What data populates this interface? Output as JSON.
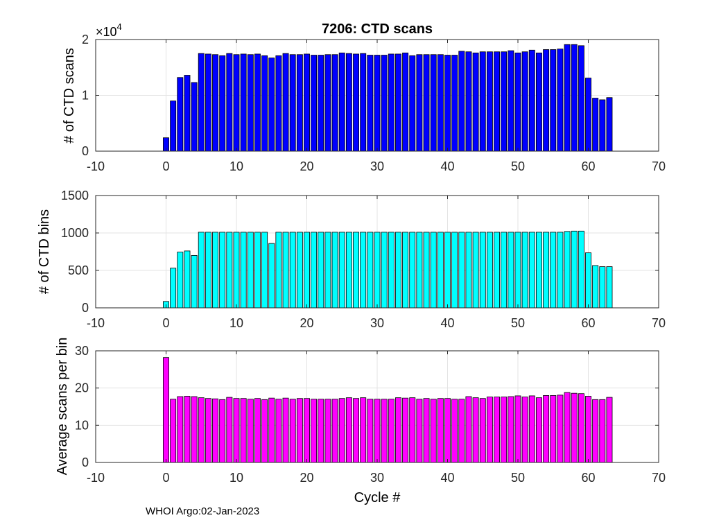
{
  "chart_data": [
    {
      "type": "bar",
      "title": "7206: CTD scans",
      "ylabel": "# of CTD scans",
      "xlabel": "",
      "xlim": [
        -10,
        70
      ],
      "ylim": [
        0,
        20000
      ],
      "xticks": [
        "-10",
        "0",
        "10",
        "20",
        "30",
        "40",
        "50",
        "60",
        "70"
      ],
      "yticks": [
        "0",
        "1",
        "2"
      ],
      "yexponent_base": "×10",
      "yexponent_power": "4",
      "bar_color": "#0000ff",
      "grid": true,
      "x": [
        0,
        1,
        2,
        3,
        4,
        5,
        6,
        7,
        8,
        9,
        10,
        11,
        12,
        13,
        14,
        15,
        16,
        17,
        18,
        19,
        20,
        21,
        22,
        23,
        24,
        25,
        26,
        27,
        28,
        29,
        30,
        31,
        32,
        33,
        34,
        35,
        36,
        37,
        38,
        39,
        40,
        41,
        42,
        43,
        44,
        45,
        46,
        47,
        48,
        49,
        50,
        51,
        52,
        53,
        54,
        55,
        56,
        57,
        58,
        59,
        60,
        61,
        62,
        63
      ],
      "values": [
        2400,
        9000,
        13200,
        13600,
        12300,
        17500,
        17400,
        17300,
        17100,
        17500,
        17300,
        17400,
        17300,
        17400,
        17100,
        16700,
        17100,
        17500,
        17300,
        17300,
        17400,
        17200,
        17200,
        17300,
        17300,
        17600,
        17500,
        17400,
        17500,
        17200,
        17200,
        17200,
        17400,
        17400,
        17600,
        17100,
        17300,
        17300,
        17300,
        17300,
        17200,
        17200,
        17900,
        17800,
        17600,
        17800,
        17800,
        17800,
        17800,
        18000,
        17600,
        17800,
        18100,
        17600,
        18200,
        18200,
        18300,
        19100,
        19100,
        18900,
        13100,
        9500,
        9200,
        9600
      ]
    },
    {
      "type": "bar",
      "title": "",
      "ylabel": "# of CTD bins",
      "xlabel": "",
      "xlim": [
        -10,
        70
      ],
      "ylim": [
        0,
        1500
      ],
      "xticks": [
        "-10",
        "0",
        "10",
        "20",
        "30",
        "40",
        "50",
        "60",
        "70"
      ],
      "yticks": [
        "0",
        "500",
        "1000",
        "1500"
      ],
      "bar_color": "#00ffff",
      "grid": true,
      "x": [
        0,
        1,
        2,
        3,
        4,
        5,
        6,
        7,
        8,
        9,
        10,
        11,
        12,
        13,
        14,
        15,
        16,
        17,
        18,
        19,
        20,
        21,
        22,
        23,
        24,
        25,
        26,
        27,
        28,
        29,
        30,
        31,
        32,
        33,
        34,
        35,
        36,
        37,
        38,
        39,
        40,
        41,
        42,
        43,
        44,
        45,
        46,
        47,
        48,
        49,
        50,
        51,
        52,
        53,
        54,
        55,
        56,
        57,
        58,
        59,
        60,
        61,
        62,
        63
      ],
      "values": [
        85,
        530,
        745,
        760,
        700,
        1010,
        1010,
        1010,
        1010,
        1010,
        1010,
        1010,
        1010,
        1010,
        1010,
        860,
        1010,
        1010,
        1010,
        1010,
        1010,
        1010,
        1010,
        1010,
        1010,
        1010,
        1010,
        1010,
        1010,
        1010,
        1010,
        1010,
        1010,
        1010,
        1010,
        1010,
        1010,
        1010,
        1010,
        1010,
        1010,
        1010,
        1010,
        1010,
        1010,
        1010,
        1010,
        1010,
        1010,
        1010,
        1010,
        1010,
        1010,
        1010,
        1010,
        1010,
        1010,
        1020,
        1025,
        1025,
        735,
        565,
        550,
        550
      ]
    },
    {
      "type": "bar",
      "title": "",
      "ylabel": "Average scans per bin",
      "xlabel": "Cycle #",
      "xlim": [
        -10,
        70
      ],
      "ylim": [
        0,
        30
      ],
      "xticks": [
        "-10",
        "0",
        "10",
        "20",
        "30",
        "40",
        "50",
        "60",
        "70"
      ],
      "yticks": [
        "0",
        "10",
        "20",
        "30"
      ],
      "bar_color": "#ff00ff",
      "grid": true,
      "x": [
        0,
        1,
        2,
        3,
        4,
        5,
        6,
        7,
        8,
        9,
        10,
        11,
        12,
        13,
        14,
        15,
        16,
        17,
        18,
        19,
        20,
        21,
        22,
        23,
        24,
        25,
        26,
        27,
        28,
        29,
        30,
        31,
        32,
        33,
        34,
        35,
        36,
        37,
        38,
        39,
        40,
        41,
        42,
        43,
        44,
        45,
        46,
        47,
        48,
        49,
        50,
        51,
        52,
        53,
        54,
        55,
        56,
        57,
        58,
        59,
        60,
        61,
        62,
        63
      ],
      "values": [
        28.2,
        17.0,
        17.7,
        17.8,
        17.7,
        17.4,
        17.2,
        17.1,
        16.9,
        17.5,
        17.2,
        17.2,
        17.0,
        17.2,
        16.9,
        17.3,
        17.0,
        17.3,
        17.0,
        17.2,
        17.2,
        17.0,
        17.0,
        17.0,
        17.0,
        17.2,
        17.4,
        17.2,
        17.4,
        17.0,
        17.0,
        17.0,
        17.0,
        17.4,
        17.3,
        17.4,
        17.0,
        17.2,
        17.0,
        17.2,
        17.2,
        17.0,
        17.0,
        17.7,
        17.4,
        17.2,
        17.6,
        17.6,
        17.6,
        17.7,
        17.9,
        17.6,
        17.9,
        17.4,
        18.0,
        18.0,
        18.1,
        18.8,
        18.6,
        18.5,
        17.8,
        16.9,
        16.9,
        17.5
      ]
    }
  ],
  "footer": {
    "text": "WHOI Argo:02-Jan-2023"
  }
}
